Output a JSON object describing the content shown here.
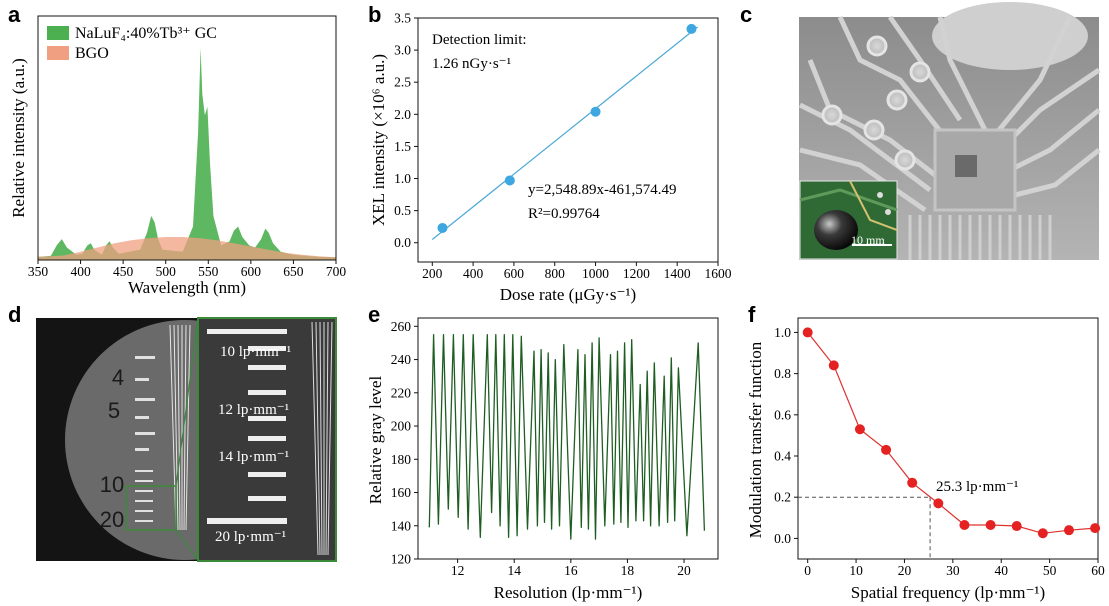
{
  "panels": {
    "a": {
      "label": "a",
      "chart_data": {
        "type": "area",
        "xlabel": "Wavelength (nm)",
        "ylabel": "Relative intensity (a.u.)",
        "xlim": [
          350,
          700
        ],
        "xticks": [
          350,
          400,
          450,
          500,
          550,
          600,
          650,
          700
        ],
        "legend": [
          {
            "name": "NaLuF₄:40%Tb³⁺ GC",
            "color": "#4caf50"
          },
          {
            "name": "BGO",
            "color": "#f0a080"
          }
        ],
        "series": [
          {
            "name": "NaLuF₄:40%Tb³⁺ GC",
            "x": [
              350,
              365,
              372,
              378,
              384,
              395,
              402,
              408,
              412,
              416,
              425,
              430,
              434,
              438,
              445,
              470,
              478,
              483,
              487,
              491,
              496,
              520,
              532,
              538,
              541,
              543,
              546,
              549,
              552,
              556,
              565,
              575,
              580,
              585,
              590,
              598,
              605,
              612,
              617,
              621,
              626,
              635,
              650,
              665,
              680,
              700
            ],
            "y": [
              0.005,
              0.01,
              0.06,
              0.09,
              0.05,
              0.015,
              0.02,
              0.06,
              0.07,
              0.04,
              0.015,
              0.06,
              0.08,
              0.05,
              0.02,
              0.04,
              0.12,
              0.2,
              0.17,
              0.09,
              0.04,
              0.03,
              0.15,
              0.6,
              1.0,
              0.78,
              0.68,
              0.72,
              0.45,
              0.2,
              0.06,
              0.08,
              0.13,
              0.15,
              0.1,
              0.06,
              0.05,
              0.09,
              0.14,
              0.12,
              0.07,
              0.03,
              0.015,
              0.01,
              0.005,
              0.004
            ]
          },
          {
            "name": "BGO",
            "x": [
              350,
              380,
              400,
              420,
              440,
              460,
              480,
              500,
              520,
              540,
              560,
              580,
              600,
              620,
              640,
              660,
              680,
              700
            ],
            "y": [
              0.005,
              0.012,
              0.03,
              0.05,
              0.07,
              0.085,
              0.095,
              0.1,
              0.1,
              0.095,
              0.085,
              0.07,
              0.055,
              0.04,
              0.025,
              0.015,
              0.008,
              0.004
            ]
          }
        ]
      }
    },
    "b": {
      "label": "b",
      "chart_data": {
        "type": "scatter",
        "xlabel": "Dose rate (μGy·s⁻¹)",
        "ylabel": "XEL intensity (×10⁶ a.u.)",
        "xlim": [
          130,
          1600
        ],
        "ylim": [
          -0.3,
          3.5
        ],
        "xticks": [
          200,
          400,
          600,
          800,
          1000,
          1200,
          1400,
          1600
        ],
        "yticks": [
          0.0,
          0.5,
          1.0,
          1.5,
          2.0,
          2.5,
          3.0,
          3.5
        ],
        "x": [
          250,
          580,
          1000,
          1470
        ],
        "y": [
          0.23,
          0.97,
          2.04,
          3.33
        ],
        "fit": {
          "x": [
            200,
            1500
          ],
          "y": [
            0.05,
            3.36
          ]
        },
        "annotations": {
          "detection_line1": "Detection limit:",
          "detection_line2": "1.26 nGy·s⁻¹",
          "equation": "y=2,548.89x-461,574.49",
          "r2": "R²=0.99764"
        }
      }
    },
    "c": {
      "label": "c",
      "inset_scale": "10 mm"
    },
    "d": {
      "label": "d",
      "numbers": [
        "4",
        "5",
        "10",
        "20"
      ],
      "callouts": [
        "10 lp·mm⁻¹",
        "12 lp·mm⁻¹",
        "14 lp·mm⁻¹",
        "20 lp·mm⁻¹"
      ]
    },
    "e": {
      "label": "e",
      "chart_data": {
        "type": "line",
        "xlabel": "Resolution (lp·mm⁻¹)",
        "ylabel": "Relative gray level",
        "xlim": [
          10.6,
          21.2
        ],
        "ylim": [
          120,
          265
        ],
        "xticks": [
          12,
          14,
          16,
          18,
          20
        ],
        "yticks": [
          120,
          140,
          160,
          180,
          200,
          220,
          240,
          260
        ],
        "peaks": [
          [
            11.15,
            255
          ],
          [
            11.5,
            255
          ],
          [
            11.85,
            255
          ],
          [
            12.2,
            255
          ],
          [
            12.55,
            255
          ],
          [
            13.05,
            255
          ],
          [
            13.35,
            255
          ],
          [
            13.65,
            255
          ],
          [
            13.95,
            255
          ],
          [
            14.25,
            254
          ],
          [
            14.7,
            245
          ],
          [
            14.95,
            246
          ],
          [
            15.2,
            244
          ],
          [
            15.45,
            240
          ],
          [
            15.75,
            249
          ],
          [
            16.25,
            246
          ],
          [
            16.5,
            243
          ],
          [
            16.75,
            250
          ],
          [
            17.0,
            253
          ],
          [
            17.4,
            243
          ],
          [
            17.65,
            245
          ],
          [
            17.9,
            250
          ],
          [
            18.15,
            252
          ],
          [
            18.45,
            225
          ],
          [
            18.7,
            233
          ],
          [
            18.95,
            238
          ],
          [
            19.3,
            230
          ],
          [
            19.55,
            241
          ],
          [
            19.8,
            235
          ],
          [
            20.5,
            250
          ]
        ],
        "troughs": [
          [
            11.32,
            141
          ],
          [
            11.67,
            150
          ],
          [
            12.02,
            145
          ],
          [
            12.37,
            138
          ],
          [
            12.8,
            133
          ],
          [
            13.2,
            148
          ],
          [
            13.5,
            140
          ],
          [
            13.8,
            133
          ],
          [
            14.1,
            134
          ],
          [
            14.47,
            138
          ],
          [
            14.82,
            140
          ],
          [
            15.07,
            142
          ],
          [
            15.32,
            138
          ],
          [
            15.6,
            140
          ],
          [
            16.0,
            132
          ],
          [
            16.37,
            139
          ],
          [
            16.62,
            138
          ],
          [
            16.87,
            132
          ],
          [
            17.2,
            140
          ],
          [
            17.52,
            141
          ],
          [
            17.77,
            142
          ],
          [
            18.02,
            139
          ],
          [
            18.3,
            143
          ],
          [
            18.57,
            143
          ],
          [
            18.82,
            140
          ],
          [
            19.12,
            140
          ],
          [
            19.42,
            142
          ],
          [
            19.67,
            143
          ],
          [
            20.1,
            134
          ]
        ],
        "start": [
          11.0,
          139
        ],
        "end": [
          20.72,
          137
        ]
      }
    },
    "f": {
      "label": "f",
      "chart_data": {
        "type": "line",
        "xlabel": "Spatial frequency (lp·mm⁻¹)",
        "ylabel": "Modulation transfer function",
        "xlim": [
          -2,
          60
        ],
        "ylim": [
          -0.1,
          1.07
        ],
        "xticks": [
          0,
          10,
          20,
          30,
          40,
          50,
          60
        ],
        "yticks": [
          0.0,
          0.2,
          0.4,
          0.6,
          0.8,
          1.0
        ],
        "x": [
          0,
          5.4,
          10.8,
          16.2,
          21.6,
          27,
          32.4,
          37.8,
          43.2,
          48.6,
          54,
          59.4
        ],
        "y": [
          1.0,
          0.84,
          0.53,
          0.43,
          0.27,
          0.17,
          0.065,
          0.065,
          0.06,
          0.025,
          0.04,
          0.05
        ],
        "marker": {
          "x": 25.3,
          "y": 0.2
        },
        "annotation": "25.3 lp·mm⁻¹"
      }
    }
  }
}
